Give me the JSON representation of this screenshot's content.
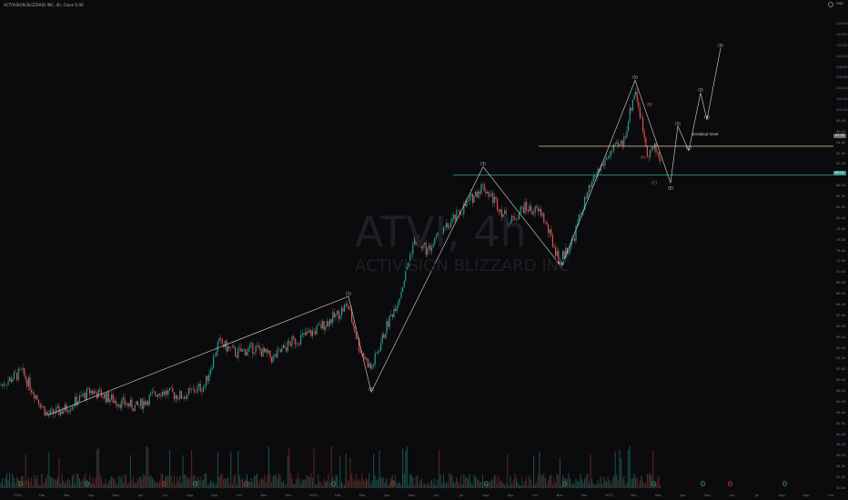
{
  "header": {
    "legend": "ACTIVISION BLIZZARD INC, 4h, Close 0.06",
    "currency_unit": "USD"
  },
  "watermark": {
    "ticker": "ATVI, 4h",
    "name": "ACTIVISION BLIZZARD INC"
  },
  "price_axis": {
    "ticks": [
      "116.00",
      "114.00",
      "112.00",
      "110.00",
      "108.00",
      "106.00",
      "104.00",
      "102.00",
      "100.00",
      "98.00",
      "96.00",
      "94.00",
      "92.00",
      "90.00",
      "88.00",
      "86.00",
      "84.00",
      "82.00",
      "80.00",
      "78.00",
      "76.00",
      "74.00",
      "72.00",
      "70.00",
      "68.00",
      "66.00",
      "64.00",
      "62.00",
      "60.00",
      "58.00",
      "56.00",
      "54.00",
      "52.00",
      "50.00",
      "48.00",
      "46.00",
      "44.00",
      "42.00",
      "40.00",
      "38.00",
      "36.00",
      "34.00",
      "32.00",
      "30.00"
    ],
    "current_price_label": "93.30",
    "support_price_label": "88.01"
  },
  "time_axis": {
    "ticks": [
      "2019",
      "Feb",
      "Mar",
      "Apr",
      "May",
      "Jun",
      "Jul",
      "Aug",
      "Sep",
      "Oct",
      "Nov",
      "Dec",
      "2020",
      "Feb",
      "Mar",
      "Apr",
      "May",
      "Jun",
      "Jul",
      "Aug",
      "Sep",
      "Oct",
      "Nov",
      "Dec",
      "2021",
      "Feb",
      "Mar",
      "Apr",
      "May",
      "Jun",
      "Jul",
      "Aug",
      "Sep",
      "Oct"
    ]
  },
  "lines": {
    "breakout_label": "breakout level"
  },
  "waves": [
    {
      "label": "(1)",
      "price": 65.5,
      "red": false
    },
    {
      "label": "(2)",
      "price": 47.8,
      "red": false
    },
    {
      "label": "(3)",
      "price": 89.5,
      "red": false
    },
    {
      "label": "(4)",
      "price": 71.0,
      "red": false
    },
    {
      "label": "(5)",
      "price": 105.5,
      "red": false
    },
    {
      "label": "(B)",
      "price": 100.5,
      "red": true
    },
    {
      "label": "(A)",
      "price": 90.8,
      "red": true
    },
    {
      "label": "(C)",
      "price": 86.0,
      "red": true
    },
    {
      "label": "(E)",
      "price": 85.0,
      "red": false
    },
    {
      "label": "(1)",
      "price": 97.0,
      "red": false
    },
    {
      "label": "(2)",
      "price": 92.5,
      "red": false
    },
    {
      "label": "(3)",
      "price": 103.2,
      "red": false
    },
    {
      "label": "(4)",
      "price": 98.2,
      "red": false
    },
    {
      "label": "(5)",
      "price": 111.5,
      "red": false
    }
  ],
  "colors": {
    "background": "#0b0b0d",
    "up": "#26a69a",
    "down": "#ef5350",
    "breakout_line": "#f0c9a8",
    "support_line": "#2fa58e",
    "wave_line": "#d9d9d9"
  },
  "event_markers": [
    "D",
    "D",
    "E",
    "D",
    "E",
    "D",
    "E",
    "D",
    "D",
    "D",
    "D",
    "E",
    "D"
  ]
}
